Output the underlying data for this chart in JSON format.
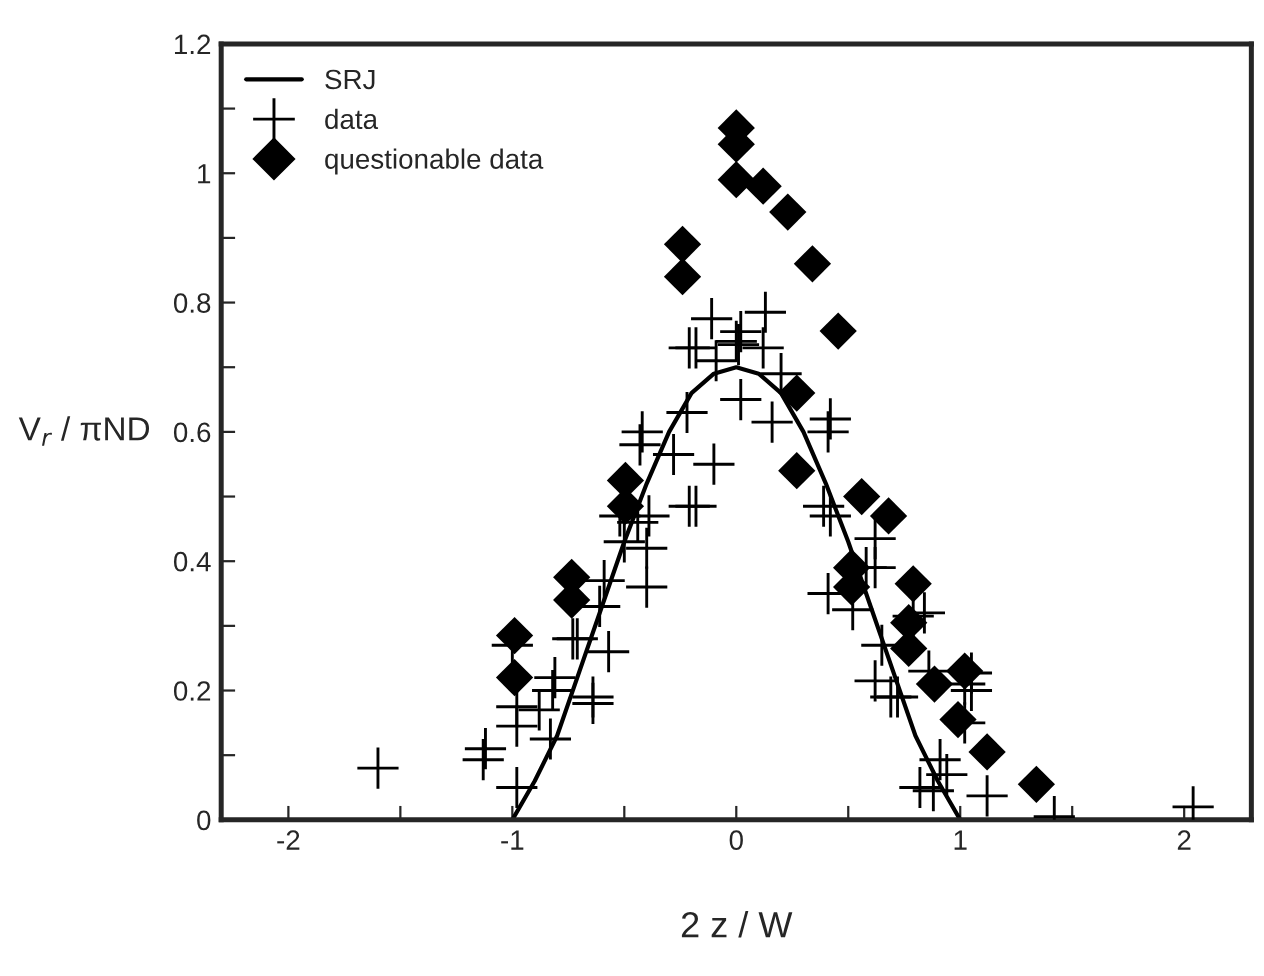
{
  "chart_data": {
    "type": "scatter",
    "xlabel": "2 z / W",
    "ylabel": "V$_{r}$ / πND",
    "xlim": [
      -2.3,
      2.3
    ],
    "ylim": [
      0,
      1.2
    ],
    "xticks": [
      -2,
      {
        "value": -1.5,
        "label": null
      },
      -1,
      {
        "value": -0.5,
        "label": null
      },
      0,
      {
        "value": 0.5,
        "label": null
      },
      1,
      {
        "value": 1.5,
        "label": null
      },
      2
    ],
    "yticks": [
      0,
      {
        "value": 0.1,
        "label": null
      },
      0.2,
      {
        "value": 0.3,
        "label": null
      },
      0.4,
      {
        "value": 0.5,
        "label": null
      },
      0.6,
      {
        "value": 0.7,
        "label": null
      },
      0.8,
      {
        "value": 0.9,
        "label": null
      },
      1,
      {
        "value": 1.1,
        "label": null
      },
      1.2
    ],
    "grid": false,
    "legend": "top left",
    "series": [
      {
        "name": "SRJ",
        "type": "line",
        "marker": "none",
        "line_style": "solid",
        "color": "#000000",
        "x": [
          -1,
          -0.9,
          -0.8,
          -0.7,
          -0.6,
          -0.5,
          -0.4,
          -0.3,
          -0.2,
          -0.1,
          0,
          0.1,
          0.2,
          0.3,
          0.4,
          0.5,
          0.6,
          0.7,
          0.8,
          0.9,
          1
        ],
        "values": [
          0,
          0.06,
          0.13,
          0.23,
          0.33,
          0.43,
          0.52,
          0.6,
          0.66,
          0.69,
          0.7,
          0.69,
          0.66,
          0.6,
          0.52,
          0.43,
          0.33,
          0.23,
          0.13,
          0.06,
          0
        ]
      },
      {
        "name": "data",
        "marker": "cross",
        "color": "#000000",
        "x": [
          -1.6,
          -1.13,
          -1.12,
          -0.98,
          -0.98,
          -0.98,
          -1.0,
          -0.88,
          -0.82,
          -0.81,
          -0.83,
          -0.73,
          -0.71,
          -0.61,
          -0.59,
          -0.57,
          -0.64,
          -0.64,
          -0.5,
          -0.52,
          -0.43,
          -0.42,
          -0.44,
          -0.4,
          -0.39,
          -0.4,
          -0.28,
          -0.22,
          -0.21,
          -0.21,
          -0.11,
          -0.1,
          -0.09,
          -0.18,
          0.02,
          0.0,
          0.01,
          0.13,
          0.12,
          0.02,
          -0.18,
          0.2,
          0.16,
          0.41,
          0.42,
          0.39,
          0.42,
          0.62,
          0.62,
          0.41,
          0.52,
          0.65,
          0.62,
          0.69,
          0.72,
          0.84,
          0.86,
          1.05,
          1.02,
          1.05,
          1.02,
          0.91,
          0.94,
          0.82,
          0.88,
          1.12,
          1.42,
          2.04,
          0.58,
          0.79
        ],
        "values": [
          0.08,
          0.093,
          0.11,
          0.05,
          0.145,
          0.175,
          0.27,
          0.17,
          0.2,
          0.22,
          0.125,
          0.28,
          0.28,
          0.33,
          0.37,
          0.26,
          0.19,
          0.18,
          0.43,
          0.47,
          0.58,
          0.6,
          0.46,
          0.42,
          0.47,
          0.36,
          0.565,
          0.63,
          0.485,
          0.73,
          0.775,
          0.55,
          0.71,
          0.73,
          0.755,
          0.74,
          0.735,
          0.785,
          0.73,
          0.65,
          0.485,
          0.69,
          0.615,
          0.6,
          0.62,
          0.485,
          0.47,
          0.435,
          0.39,
          0.35,
          0.325,
          0.27,
          0.215,
          0.19,
          0.19,
          0.32,
          0.23,
          0.227,
          0.21,
          0.2,
          0.15,
          0.093,
          0.07,
          0.05,
          0.045,
          0.037,
          0.005,
          0.02,
          0.39,
          0.315
        ]
      },
      {
        "name": "questionable data",
        "marker": "diamond",
        "color": "#000000",
        "x": [
          -0.99,
          -0.99,
          -0.735,
          -0.735,
          -0.495,
          -0.495,
          -0.24,
          -0.24,
          0.0,
          0.0,
          0.0,
          0.12,
          0.23,
          0.34,
          0.455,
          0.27,
          0.27,
          0.56,
          0.68,
          0.515,
          0.515,
          0.79,
          0.77,
          0.77,
          0.885,
          1.02,
          0.99,
          1.12,
          1.34
        ],
        "values": [
          0.285,
          0.22,
          0.375,
          0.34,
          0.525,
          0.485,
          0.89,
          0.84,
          1.07,
          1.045,
          0.99,
          0.98,
          0.94,
          0.86,
          0.756,
          0.66,
          0.54,
          0.5,
          0.47,
          0.39,
          0.36,
          0.365,
          0.305,
          0.265,
          0.21,
          0.23,
          0.155,
          0.105,
          0.055
        ]
      }
    ]
  }
}
